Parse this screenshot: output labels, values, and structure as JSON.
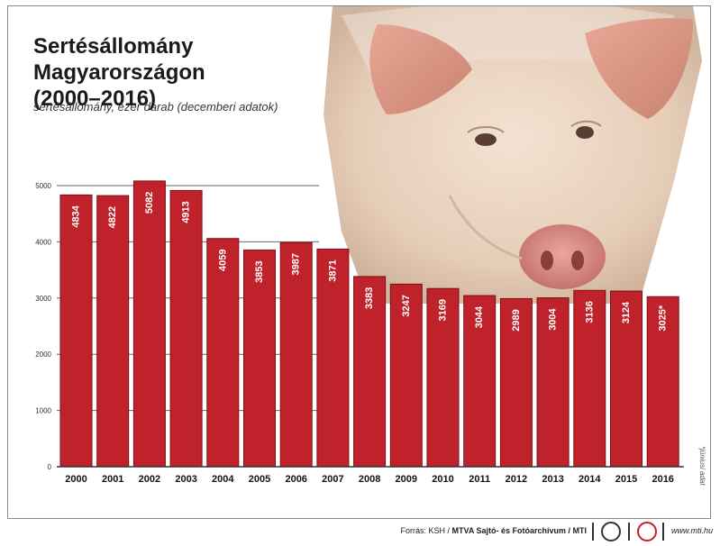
{
  "title": "Sertésállomány Magyarországon\n(2000–2016)",
  "subtitle": "sertésállomány, ezer darab (decemberi adatok)",
  "footnote": "*júniusi adat",
  "footer": {
    "source_prefix": "Forrás: KSH / ",
    "source_bold": "MTVA Sajtó- és Fotóarchívum / MTI",
    "site": "www.mti.hu"
  },
  "colors": {
    "bar": "#c0222c",
    "bar_edge": "#7a0f15",
    "label": "#ffffff"
  },
  "chart_data": {
    "type": "bar",
    "title": "Sertésállomány Magyarországon (2000–2016)",
    "subtitle": "sertésállomány, ezer darab (decemberi adatok)",
    "categories": [
      "2000",
      "2001",
      "2002",
      "2003",
      "2004",
      "2005",
      "2006",
      "2007",
      "2008",
      "2009",
      "2010",
      "2011",
      "2012",
      "2013",
      "2014",
      "2015",
      "2016"
    ],
    "values": [
      4834,
      4822,
      5082,
      4913,
      4059,
      3853,
      3987,
      3871,
      3383,
      3247,
      3169,
      3044,
      2989,
      3004,
      3136,
      3124,
      3025
    ],
    "value_labels": [
      "4834",
      "4822",
      "5082",
      "4913",
      "4059",
      "3853",
      "3987",
      "3871",
      "3383",
      "3247",
      "3169",
      "3044",
      "2989",
      "3004",
      "3136",
      "3124",
      "3025*"
    ],
    "yticks": [
      0,
      1000,
      2000,
      3000,
      4000,
      5000
    ],
    "ylim": [
      0,
      5200
    ],
    "grid": true
  }
}
